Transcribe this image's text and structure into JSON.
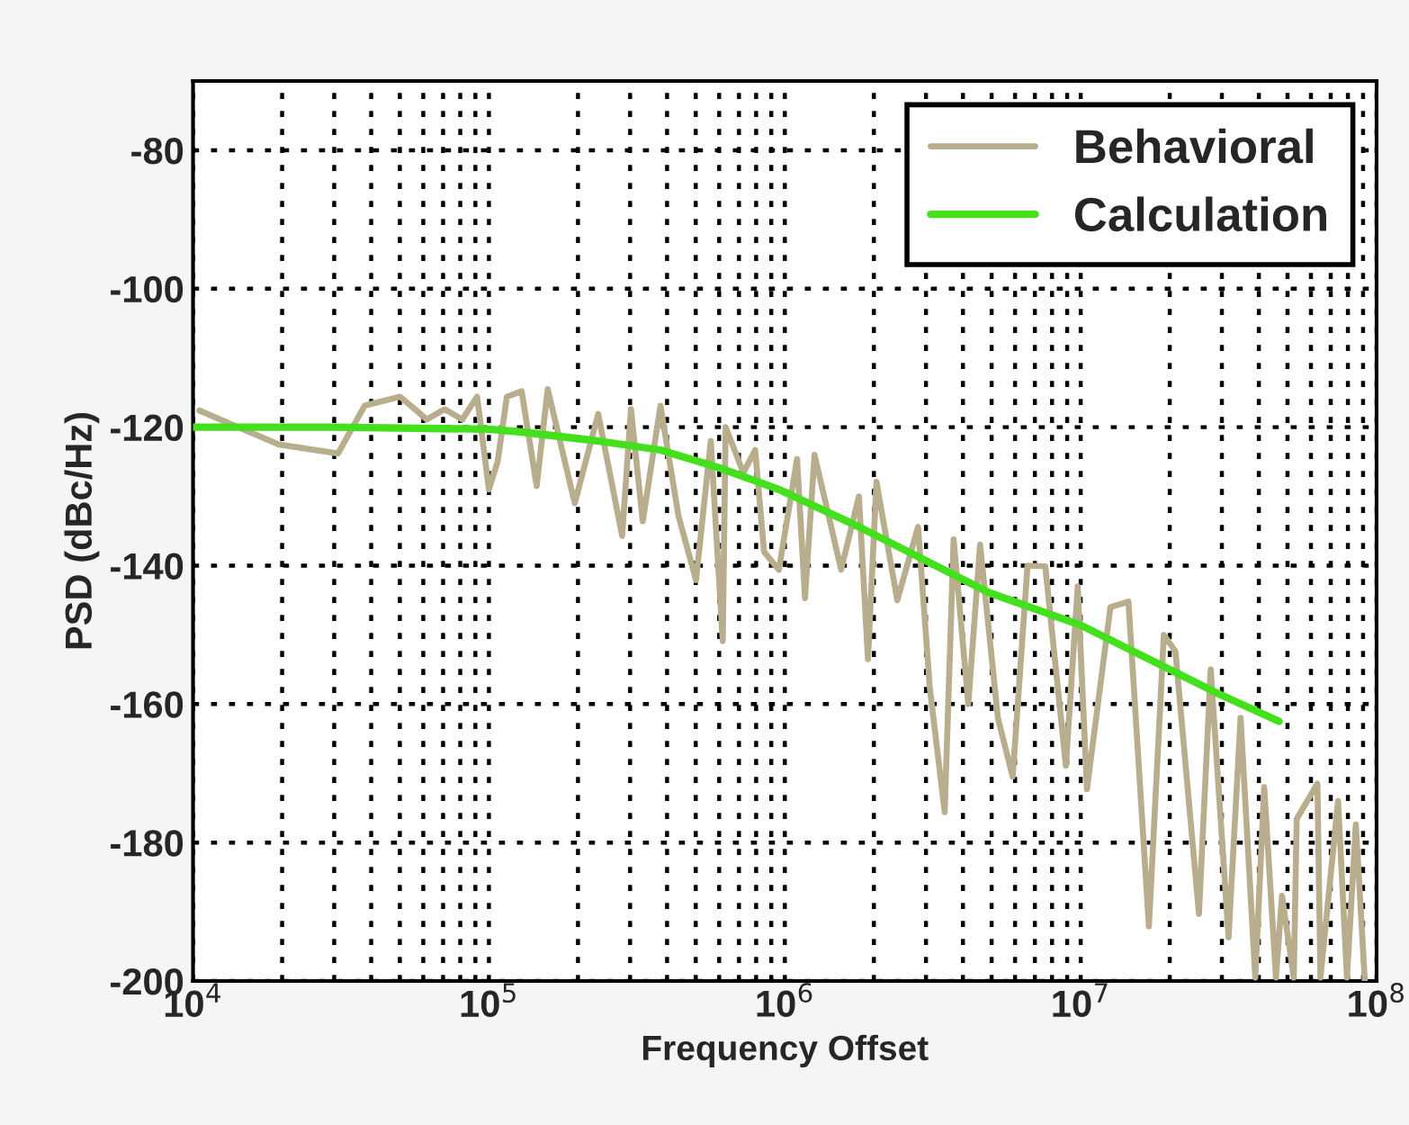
{
  "chart_data": {
    "type": "line",
    "xlabel": "Frequency Offset",
    "ylabel": "PSD (dBc/Hz)",
    "log": "x",
    "grid": true,
    "legend": "top right",
    "marker": "none",
    "line_style": "solid",
    "xlim": [
      10000,
      100000000
    ],
    "ylim": [
      -200,
      -70
    ],
    "xticks": [
      {
        "value": 10000,
        "label": "10$^{4}$"
      },
      {
        "value": 100000,
        "label": "10$^{5}$"
      },
      {
        "value": 1000000,
        "label": "10$^{6}$"
      },
      {
        "value": 10000000,
        "label": "10$^{7}$"
      },
      {
        "value": 100000000,
        "label": "10$^{8}$"
      }
    ],
    "yticks": [
      -200,
      -180,
      -160,
      -140,
      -120,
      -100,
      -80
    ],
    "series": [
      {
        "name": "Behavioral",
        "color": "#b8ad8c",
        "x": [
          10500.0,
          19500.0,
          30900.0,
          38000.0,
          50100.0,
          61700.0,
          70800.0,
          81300.0,
          91200.0,
          100000.0,
          107000.0,
          115000.0,
          129000.0,
          145000.0,
          158000.0,
          195000.0,
          234000.0,
          282000.0,
          302000.0,
          331000.0,
          380000.0,
          437000.0,
          501000.0,
          562000.0,
          617000.0,
          631000.0,
          724000.0,
          794000.0,
          851000.0,
          955000.0,
          1100000.0,
          1170000.0,
          1260000.0,
          1550000.0,
          1780000.0,
          1910000.0,
          2040000.0,
          2400000.0,
          2820000.0,
          3090000.0,
          3470000.0,
          3720000.0,
          4170000.0,
          4570000.0,
          5250000.0,
          5890000.0,
          6610000.0,
          7590000.0,
          8910000.0,
          9770000.0,
          10500000.0,
          12600000.0,
          14500000.0,
          17000000.0,
          19100000.0,
          20900000.0,
          25100000.0,
          27500000.0,
          31600000.0,
          34700000.0,
          38900000.0,
          41700000.0,
          45700000.0,
          47900000.0,
          52500000.0,
          53700000.0,
          63100000.0,
          64600000.0,
          74100000.0,
          79400000.0,
          85100000.0,
          91200000.0
        ],
        "values": [
          -117.6,
          -122.5,
          -123.8,
          -116.9,
          -115.6,
          -118.9,
          -117.4,
          -118.9,
          -115.6,
          -129,
          -125,
          -115.6,
          -114.8,
          -128.5,
          -114.5,
          -131,
          -118.1,
          -135.7,
          -117.4,
          -133.6,
          -116.9,
          -132.8,
          -142.1,
          -122,
          -150.9,
          -120,
          -126.6,
          -123.3,
          -138,
          -140.6,
          -124.6,
          -144.7,
          -124,
          -140.6,
          -130,
          -153.5,
          -127.9,
          -145,
          -134.4,
          -157.6,
          -175.6,
          -136.2,
          -160,
          -137,
          -162,
          -170.5,
          -140,
          -140.1,
          -168.9,
          -143,
          -172.3,
          -146,
          -145.2,
          -192.1,
          -150,
          -152.4,
          -190.3,
          -155,
          -193.7,
          -162,
          -199.5,
          -172,
          -199.5,
          -187.7,
          -199.5,
          -176.6,
          -171.5,
          -199.5,
          -174,
          -199.5,
          -177.4,
          -199.8
        ]
      },
      {
        "name": "Calculation",
        "color": "#44e01e",
        "x": [
          10000.0,
          30000.0,
          100000.0,
          129000.0,
          234000.0,
          380000.0,
          603000.0,
          955000.0,
          1780000.0,
          4900000.0,
          10000000.0,
          29500000.0,
          46800000.0
        ],
        "values": [
          -120,
          -120,
          -120.3,
          -120.7,
          -122,
          -123.3,
          -125.9,
          -129,
          -134.4,
          -143.9,
          -148.6,
          -158.6,
          -162.5
        ]
      }
    ]
  }
}
